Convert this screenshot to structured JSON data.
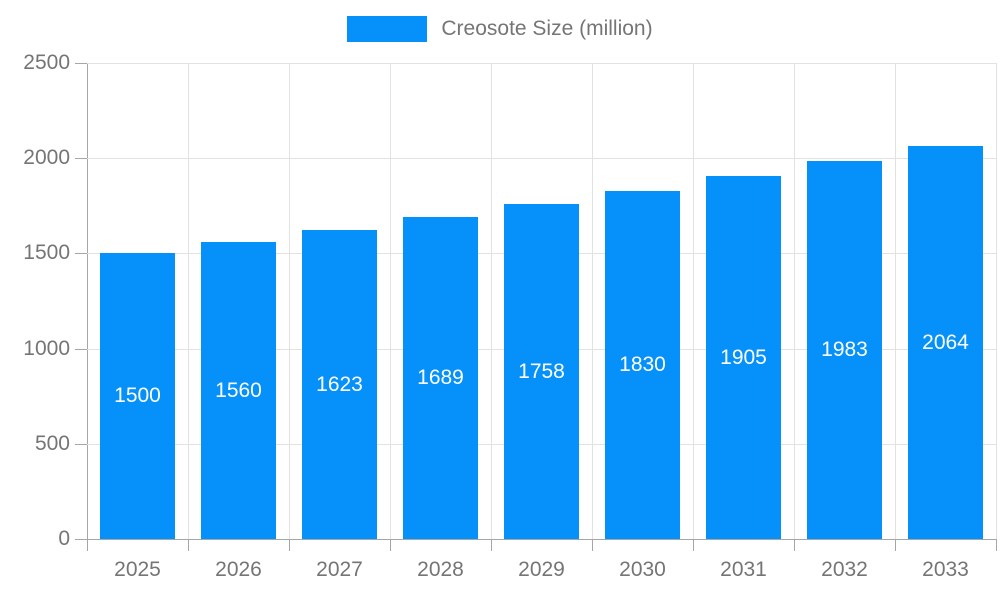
{
  "legend": {
    "label": "Creosote Size (million)"
  },
  "colors": {
    "bar": "#0591F9",
    "axis": "#a6a6a6",
    "grid": "#e2e2e2",
    "text": "#757575",
    "bar_label": "#ffffff",
    "background": "#ffffff"
  },
  "chart_data": {
    "type": "bar",
    "title": "",
    "xlabel": "",
    "ylabel": "",
    "categories": [
      "2025",
      "2026",
      "2027",
      "2028",
      "2029",
      "2030",
      "2031",
      "2032",
      "2033"
    ],
    "values": [
      1500,
      1560,
      1623,
      1689,
      1758,
      1830,
      1905,
      1983,
      2064
    ],
    "series_name": "Creosote Size (million)",
    "ylim": [
      0,
      2500
    ],
    "yticks": [
      0,
      500,
      1000,
      1500,
      2000,
      2500
    ],
    "grid": true,
    "legend_position": "top",
    "value_labels": "inside-center"
  }
}
